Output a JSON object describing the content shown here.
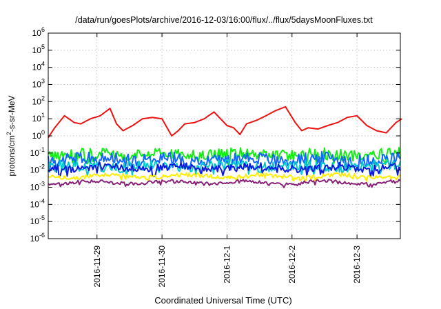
{
  "chart_data": {
    "type": "line",
    "title": "/data/run/goesPlots/archive/2016-12-03/16:00/flux/../flux/5daysMoonFluxes.txt",
    "xlabel": "Coordinated Universal Time (UTC)",
    "ylabel": {
      "base": "protons/cm",
      "sup": "2",
      "rest": "-s-sr-MeV"
    },
    "y_scale": "log",
    "ylim": [
      1e-06,
      1000000.0
    ],
    "y_tick_exponents": [
      -6,
      -5,
      -4,
      -3,
      -2,
      -1,
      0,
      1,
      2,
      3,
      4,
      5,
      6
    ],
    "y_tick_base": "10",
    "x_range": [
      "2016-11-28 06:00",
      "2016-12-03 16:00"
    ],
    "x_ticks": [
      "2016-11-29",
      "2016-11-30",
      "2016-12-1",
      "2016-12-2",
      "2016-12-3"
    ],
    "grid": true,
    "series": [
      {
        "color": "#ee1111",
        "days": [
          0,
          0.1,
          0.25,
          0.4,
          0.5,
          0.65,
          0.8,
          0.95,
          1.05,
          1.15,
          1.3,
          1.45,
          1.6,
          1.75,
          1.9,
          2.0,
          2.1,
          2.25,
          2.4,
          2.55,
          2.75,
          2.85,
          2.95,
          3.05,
          3.2,
          3.35,
          3.5,
          3.65,
          3.8,
          3.9,
          4.0,
          4.15,
          4.3,
          4.45,
          4.6,
          4.75,
          4.9,
          5.05,
          5.2,
          5.35,
          5.44
        ],
        "values": [
          0.8,
          3,
          15,
          6,
          5,
          10,
          15,
          40,
          5,
          2,
          4,
          10,
          12,
          10,
          1,
          2,
          5,
          6,
          10,
          25,
          4,
          3,
          1.2,
          5,
          8,
          15,
          30,
          50,
          6,
          2,
          3,
          2.5,
          4,
          6,
          12,
          15,
          4,
          2,
          1.5,
          6,
          10
        ]
      },
      {
        "color": "#11ee11",
        "base": 0.085,
        "amp": 0.32,
        "seed": 11
      },
      {
        "color": "#1166ff",
        "base": 0.045,
        "amp": 0.36,
        "seed": 23
      },
      {
        "color": "#00cccc",
        "base": 0.017,
        "amp": 0.3,
        "seed": 37
      },
      {
        "color": "#0a1ae0",
        "base": 0.014,
        "amp": 0.22,
        "seed": 41
      },
      {
        "color": "#ffee00",
        "base": 0.0045,
        "amp": 0.12,
        "seed": 53
      },
      {
        "color": "#882277",
        "base": 0.0019,
        "amp": 0.1,
        "seed": 67
      }
    ]
  }
}
